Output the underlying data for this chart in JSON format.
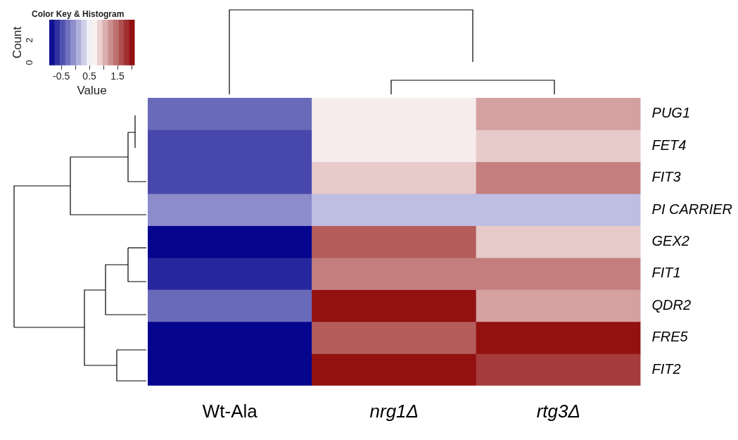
{
  "chart_data": {
    "type": "heatmap",
    "categories": [
      "Wt-Ala",
      "nrg1Δ",
      "rtg3Δ"
    ],
    "y_categories": [
      "PUG1",
      "FET4",
      "FIT3",
      "PI CARRIER",
      "GEX2",
      "FIT1",
      "QDR2",
      "FRE5",
      "FIT2"
    ],
    "cells": [
      [
        -0.3,
        0.7,
        1.15
      ],
      [
        -0.5,
        0.7,
        0.9
      ],
      [
        -0.5,
        0.9,
        1.35
      ],
      [
        -0.1,
        0.2,
        0.2
      ],
      [
        -0.9,
        1.55,
        0.9
      ],
      [
        -0.7,
        1.35,
        1.35
      ],
      [
        -0.3,
        2,
        1.15
      ],
      [
        -0.9,
        1.55,
        2
      ],
      [
        -0.9,
        2,
        1.75
      ]
    ],
    "clim": [
      -0.93,
      2.1
    ],
    "cticks": [
      {
        "value": -0.5,
        "label": "-0.5"
      },
      {
        "value": 0,
        "label": null
      },
      {
        "value": 0.5,
        "label": "0.5"
      },
      {
        "value": 1,
        "label": null
      },
      {
        "value": 1.5,
        "label": "1.5"
      },
      {
        "value": 2,
        "label": null
      }
    ],
    "clabel": "Value",
    "annotations": [
      "Color Key & Histogram",
      "Count",
      "0",
      "2"
    ]
  }
}
